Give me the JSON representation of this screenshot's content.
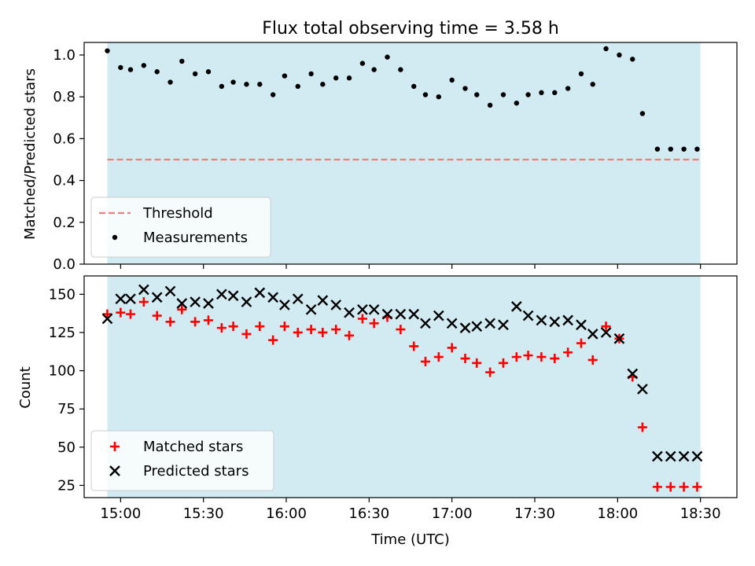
{
  "chart_data": [
    {
      "type": "scatter",
      "title": "Flux total observing time = 3.58 h",
      "xlabel": "",
      "ylabel": "Matched/Predicted stars",
      "xlim": [
        14.78,
        18.72
      ],
      "ylim": [
        0.0,
        1.06
      ],
      "x_ticks": [
        15.0,
        15.5,
        16.0,
        16.5,
        17.0,
        17.5,
        18.0,
        18.5
      ],
      "x_tick_labels": [
        "",
        "",
        "",
        "",
        "",
        "",
        "",
        ""
      ],
      "y_ticks": [
        0.0,
        0.2,
        0.4,
        0.6,
        0.8,
        1.0
      ],
      "y_tick_labels": [
        "0.0",
        "0.2",
        "0.4",
        "0.6",
        "0.8",
        "1.0"
      ],
      "observing_span": [
        14.92,
        18.5
      ],
      "span_color": "#add8e6",
      "grid": false,
      "legend_position": "lower-left",
      "series": [
        {
          "name": "Threshold",
          "kind": "line",
          "style": "dashed",
          "color": "#f08080",
          "x": [
            14.92,
            18.5
          ],
          "y": [
            0.5,
            0.5
          ]
        },
        {
          "name": "Measurements",
          "kind": "points",
          "marker": "dot",
          "color": "#000000",
          "x": [
            14.92,
            15.0,
            15.06,
            15.14,
            15.22,
            15.3,
            15.37,
            15.45,
            15.53,
            15.61,
            15.68,
            15.76,
            15.84,
            15.92,
            15.99,
            16.07,
            16.15,
            16.22,
            16.3,
            16.38,
            16.46,
            16.53,
            16.61,
            16.69,
            16.77,
            16.84,
            16.92,
            17.0,
            17.08,
            17.15,
            17.23,
            17.31,
            17.39,
            17.46,
            17.54,
            17.62,
            17.7,
            17.78,
            17.85,
            17.93,
            18.01,
            18.09,
            18.15,
            18.24,
            18.32,
            18.4,
            18.48
          ],
          "y": [
            1.02,
            0.94,
            0.93,
            0.95,
            0.92,
            0.87,
            0.97,
            0.91,
            0.92,
            0.85,
            0.87,
            0.86,
            0.86,
            0.81,
            0.9,
            0.85,
            0.91,
            0.86,
            0.89,
            0.89,
            0.96,
            0.93,
            0.99,
            0.93,
            0.85,
            0.81,
            0.8,
            0.88,
            0.84,
            0.81,
            0.76,
            0.81,
            0.77,
            0.81,
            0.82,
            0.82,
            0.84,
            0.91,
            0.86,
            1.03,
            1.0,
            0.98,
            0.72,
            0.55,
            0.55,
            0.55,
            0.55
          ]
        }
      ]
    },
    {
      "type": "scatter",
      "title": "",
      "xlabel": "Time (UTC)",
      "ylabel": "Count",
      "xlim": [
        14.78,
        18.72
      ],
      "ylim": [
        17,
        162
      ],
      "x_ticks": [
        15.0,
        15.5,
        16.0,
        16.5,
        17.0,
        17.5,
        18.0,
        18.5
      ],
      "x_tick_labels": [
        "15:00",
        "15:30",
        "16:00",
        "16:30",
        "17:00",
        "17:30",
        "18:00",
        "18:30"
      ],
      "y_ticks": [
        25,
        50,
        75,
        100,
        125,
        150
      ],
      "y_tick_labels": [
        "25",
        "50",
        "75",
        "100",
        "125",
        "150"
      ],
      "observing_span": [
        14.92,
        18.5
      ],
      "span_color": "#add8e6",
      "grid": false,
      "legend_position": "lower-left",
      "series": [
        {
          "name": "Matched stars",
          "kind": "points",
          "marker": "plus",
          "color": "#ff0000",
          "x": [
            14.92,
            15.0,
            15.06,
            15.14,
            15.22,
            15.3,
            15.37,
            15.45,
            15.53,
            15.61,
            15.68,
            15.76,
            15.84,
            15.92,
            15.99,
            16.07,
            16.15,
            16.22,
            16.3,
            16.38,
            16.46,
            16.53,
            16.61,
            16.69,
            16.77,
            16.84,
            16.92,
            17.0,
            17.08,
            17.15,
            17.23,
            17.31,
            17.39,
            17.46,
            17.54,
            17.62,
            17.7,
            17.78,
            17.85,
            17.93,
            18.01,
            18.09,
            18.15,
            18.24,
            18.32,
            18.4,
            18.48
          ],
          "y": [
            137,
            138,
            137,
            145,
            136,
            132,
            140,
            132,
            133,
            128,
            129,
            124,
            129,
            120,
            129,
            125,
            127,
            125,
            127,
            123,
            134,
            131,
            135,
            127,
            116,
            106,
            109,
            115,
            108,
            105,
            99,
            105,
            109,
            110,
            109,
            108,
            112,
            118,
            107,
            129,
            121,
            96,
            63,
            24,
            24,
            24,
            24
          ]
        },
        {
          "name": "Predicted stars",
          "kind": "points",
          "marker": "x",
          "color": "#000000",
          "x": [
            14.92,
            15.0,
            15.06,
            15.14,
            15.22,
            15.3,
            15.37,
            15.45,
            15.53,
            15.61,
            15.68,
            15.76,
            15.84,
            15.92,
            15.99,
            16.07,
            16.15,
            16.22,
            16.3,
            16.38,
            16.46,
            16.53,
            16.61,
            16.69,
            16.77,
            16.84,
            16.92,
            17.0,
            17.08,
            17.15,
            17.23,
            17.31,
            17.39,
            17.46,
            17.54,
            17.62,
            17.7,
            17.78,
            17.85,
            17.93,
            18.01,
            18.09,
            18.15,
            18.24,
            18.32,
            18.4,
            18.48
          ],
          "y": [
            134,
            147,
            147,
            153,
            148,
            152,
            144,
            145,
            144,
            150,
            149,
            145,
            151,
            148,
            143,
            147,
            140,
            146,
            143,
            138,
            140,
            140,
            137,
            137,
            137,
            131,
            136,
            131,
            128,
            129,
            131,
            130,
            142,
            136,
            133,
            132,
            133,
            130,
            124,
            125,
            121,
            98,
            88,
            44,
            44,
            44,
            44
          ]
        }
      ]
    }
  ]
}
